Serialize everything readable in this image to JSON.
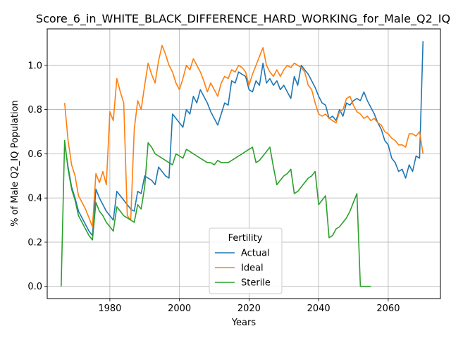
{
  "chart_data": {
    "type": "line",
    "title": "Score_6_in_WHITE_BLACK_DIFFERENCE_HARD_WORKING_for_Male_Q2_IQ",
    "xlabel": "Years",
    "ylabel": "% of Male Q2_IQ Population",
    "xlim": [
      1962,
      2075
    ],
    "ylim": [
      -0.055,
      1.165
    ],
    "x_ticks": [
      1980,
      2000,
      2020,
      2040,
      2060
    ],
    "y_ticks": [
      0.0,
      0.2,
      0.4,
      0.6,
      0.8,
      1.0
    ],
    "grid": true,
    "legend": {
      "title": "Fertility",
      "placement": "lower-center"
    },
    "series": [
      {
        "name": "Actual",
        "color": "#1f77b4",
        "x": [
          1967,
          1968,
          1969,
          1970,
          1971,
          1972,
          1973,
          1974,
          1975,
          1976,
          1977,
          1978,
          1979,
          1980,
          1981,
          1982,
          1983,
          1984,
          1985,
          1986,
          1987,
          1988,
          1989,
          1990,
          1991,
          1992,
          1993,
          1994,
          1995,
          1996,
          1997,
          1998,
          1999,
          2000,
          2001,
          2002,
          2003,
          2004,
          2005,
          2006,
          2007,
          2008,
          2009,
          2010,
          2011,
          2012,
          2013,
          2014,
          2015,
          2016,
          2017,
          2018,
          2019,
          2020,
          2021,
          2022,
          2023,
          2024,
          2025,
          2026,
          2027,
          2028,
          2029,
          2030,
          2031,
          2032,
          2033,
          2034,
          2035,
          2036,
          2037,
          2038,
          2039,
          2040,
          2041,
          2042,
          2043,
          2044,
          2045,
          2046,
          2047,
          2048,
          2049,
          2050,
          2051,
          2052,
          2053,
          2054,
          2055,
          2056,
          2057,
          2058,
          2059,
          2060,
          2061,
          2062,
          2063,
          2064,
          2065,
          2066,
          2067,
          2068,
          2069,
          2070
        ],
        "y": [
          0.65,
          0.54,
          0.45,
          0.4,
          0.34,
          0.31,
          0.28,
          0.25,
          0.23,
          0.44,
          0.4,
          0.37,
          0.34,
          0.32,
          0.3,
          0.43,
          0.41,
          0.39,
          0.37,
          0.35,
          0.34,
          0.43,
          0.42,
          0.5,
          0.49,
          0.48,
          0.46,
          0.54,
          0.52,
          0.5,
          0.49,
          0.78,
          0.76,
          0.74,
          0.72,
          0.8,
          0.78,
          0.86,
          0.83,
          0.89,
          0.86,
          0.83,
          0.79,
          0.76,
          0.73,
          0.78,
          0.83,
          0.82,
          0.93,
          0.92,
          0.97,
          0.96,
          0.95,
          0.89,
          0.88,
          0.93,
          0.91,
          1.01,
          0.92,
          0.94,
          0.91,
          0.93,
          0.89,
          0.91,
          0.88,
          0.85,
          0.95,
          0.91,
          1.0,
          0.98,
          0.96,
          0.93,
          0.9,
          0.86,
          0.83,
          0.82,
          0.76,
          0.77,
          0.75,
          0.8,
          0.77,
          0.83,
          0.82,
          0.84,
          0.85,
          0.84,
          0.88,
          0.84,
          0.81,
          0.78,
          0.74,
          0.71,
          0.66,
          0.64,
          0.58,
          0.56,
          0.52,
          0.53,
          0.49,
          0.55,
          0.52,
          0.59,
          0.58,
          1.11
        ]
      },
      {
        "name": "Ideal",
        "color": "#ff7f0e",
        "x": [
          1967,
          1968,
          1969,
          1970,
          1971,
          1972,
          1973,
          1974,
          1975,
          1976,
          1977,
          1978,
          1979,
          1980,
          1981,
          1982,
          1983,
          1984,
          1985,
          1986,
          1987,
          1988,
          1989,
          1990,
          1991,
          1992,
          1993,
          1994,
          1995,
          1996,
          1997,
          1998,
          1999,
          2000,
          2001,
          2002,
          2003,
          2004,
          2005,
          2006,
          2007,
          2008,
          2009,
          2010,
          2011,
          2012,
          2013,
          2014,
          2015,
          2016,
          2017,
          2018,
          2019,
          2020,
          2021,
          2022,
          2023,
          2024,
          2025,
          2026,
          2027,
          2028,
          2029,
          2030,
          2031,
          2032,
          2033,
          2034,
          2035,
          2036,
          2037,
          2038,
          2039,
          2040,
          2041,
          2042,
          2043,
          2044,
          2045,
          2046,
          2047,
          2048,
          2049,
          2050,
          2051,
          2052,
          2053,
          2054,
          2055,
          2056,
          2057,
          2058,
          2059,
          2060,
          2061,
          2062,
          2063,
          2064,
          2065,
          2066,
          2067,
          2068,
          2069,
          2070
        ],
        "y": [
          0.83,
          0.66,
          0.55,
          0.5,
          0.41,
          0.38,
          0.35,
          0.31,
          0.27,
          0.51,
          0.47,
          0.52,
          0.46,
          0.79,
          0.75,
          0.94,
          0.88,
          0.83,
          0.32,
          0.3,
          0.71,
          0.84,
          0.8,
          0.91,
          1.01,
          0.96,
          0.92,
          1.02,
          1.09,
          1.05,
          1.0,
          0.97,
          0.92,
          0.89,
          0.94,
          1.0,
          0.98,
          1.03,
          1.0,
          0.97,
          0.93,
          0.88,
          0.92,
          0.89,
          0.86,
          0.92,
          0.95,
          0.94,
          0.98,
          0.97,
          1.0,
          0.99,
          0.97,
          0.91,
          0.96,
          1.0,
          1.04,
          1.08,
          1.0,
          0.97,
          0.95,
          0.98,
          0.95,
          0.98,
          1.0,
          0.99,
          1.01,
          1.0,
          0.99,
          0.97,
          0.91,
          0.89,
          0.83,
          0.78,
          0.77,
          0.78,
          0.76,
          0.75,
          0.74,
          0.79,
          0.8,
          0.85,
          0.86,
          0.82,
          0.79,
          0.78,
          0.76,
          0.77,
          0.75,
          0.76,
          0.74,
          0.73,
          0.7,
          0.69,
          0.67,
          0.66,
          0.64,
          0.64,
          0.63,
          0.69,
          0.69,
          0.68,
          0.7,
          0.6
        ]
      },
      {
        "name": "Sterile",
        "color": "#2ca02c",
        "x": [
          1966,
          1967,
          1968,
          1969,
          1970,
          1971,
          1972,
          1973,
          1974,
          1975,
          1976,
          1977,
          1978,
          1979,
          1980,
          1981,
          1982,
          1983,
          1984,
          1985,
          1986,
          1987,
          1988,
          1989,
          1990,
          1991,
          1992,
          1993,
          1994,
          1995,
          1996,
          1997,
          1998,
          1999,
          2000,
          2001,
          2002,
          2003,
          2004,
          2005,
          2006,
          2007,
          2008,
          2009,
          2010,
          2011,
          2012,
          2013,
          2014,
          2015,
          2016,
          2017,
          2018,
          2019,
          2020,
          2021,
          2022,
          2023,
          2024,
          2025,
          2026,
          2027,
          2028,
          2029,
          2030,
          2031,
          2032,
          2033,
          2034,
          2035,
          2036,
          2037,
          2038,
          2039,
          2040,
          2041,
          2042,
          2043,
          2044,
          2045,
          2046,
          2047,
          2048,
          2049,
          2050,
          2051,
          2052,
          2053,
          2054,
          2055
        ],
        "y": [
          0.0,
          0.66,
          0.53,
          0.44,
          0.39,
          0.32,
          0.29,
          0.26,
          0.23,
          0.21,
          0.38,
          0.34,
          0.32,
          0.29,
          0.27,
          0.25,
          0.36,
          0.34,
          0.32,
          0.31,
          0.3,
          0.29,
          0.37,
          0.35,
          0.45,
          0.65,
          0.63,
          0.6,
          0.59,
          0.58,
          0.57,
          0.56,
          0.55,
          0.6,
          0.59,
          0.58,
          0.62,
          0.61,
          0.6,
          0.59,
          0.58,
          0.57,
          0.56,
          0.56,
          0.55,
          0.57,
          0.56,
          0.56,
          0.56,
          0.57,
          0.58,
          0.59,
          0.6,
          0.61,
          0.62,
          0.63,
          0.56,
          0.57,
          0.59,
          0.61,
          0.63,
          0.54,
          0.46,
          0.48,
          0.5,
          0.51,
          0.53,
          0.42,
          0.43,
          0.45,
          0.47,
          0.49,
          0.5,
          0.52,
          0.37,
          0.39,
          0.41,
          0.22,
          0.23,
          0.26,
          0.27,
          0.29,
          0.31,
          0.34,
          0.38,
          0.42,
          0.0,
          0.0,
          0.0,
          0.0
        ]
      }
    ]
  }
}
